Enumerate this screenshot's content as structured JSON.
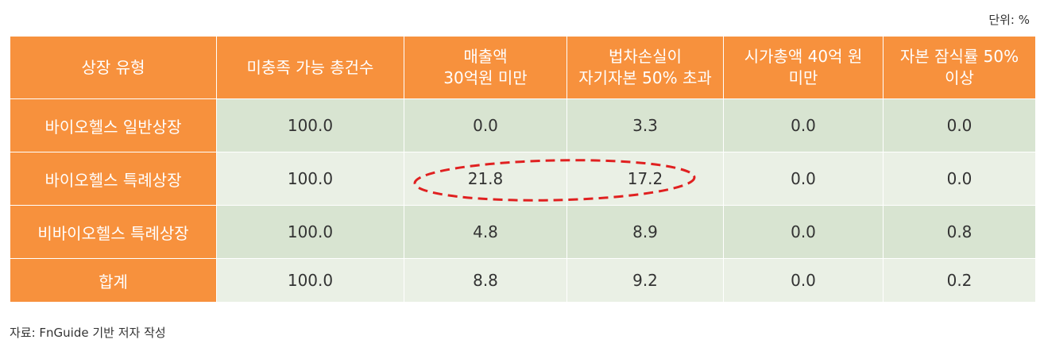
{
  "unit": "단위: %",
  "headers": [
    {
      "lines": [
        "상장 유형"
      ]
    },
    {
      "lines": [
        "미충족 가능 총건수"
      ]
    },
    {
      "lines": [
        "매출액",
        "30억원 미만"
      ]
    },
    {
      "lines": [
        "법차손실이",
        "자기자본 50% 초과"
      ]
    },
    {
      "lines": [
        "시가총액 40억 원",
        "미만"
      ]
    },
    {
      "lines": [
        "자본 잠식률 50%",
        "이상"
      ]
    }
  ],
  "rows": [
    {
      "label": "바이오헬스 일반상장",
      "values": [
        "100.0",
        "0.0",
        "3.3",
        "0.0",
        "0.0"
      ]
    },
    {
      "label": "바이오헬스 특례상장",
      "values": [
        "100.0",
        "21.8",
        "17.2",
        "0.0",
        "0.0"
      ]
    },
    {
      "label": "비바이오헬스 특례상장",
      "values": [
        "100.0",
        "4.8",
        "8.9",
        "0.0",
        "0.8"
      ]
    },
    {
      "label": "합계",
      "values": [
        "100.0",
        "8.8",
        "9.2",
        "0.0",
        "0.2"
      ]
    }
  ],
  "source": "자료: FnGuide 기반 저자 작성",
  "colors": {
    "header_bg": "#f7913d",
    "row_dark": "#d8e4d1",
    "row_light": "#eaf0e5",
    "highlight": "#e02020"
  }
}
